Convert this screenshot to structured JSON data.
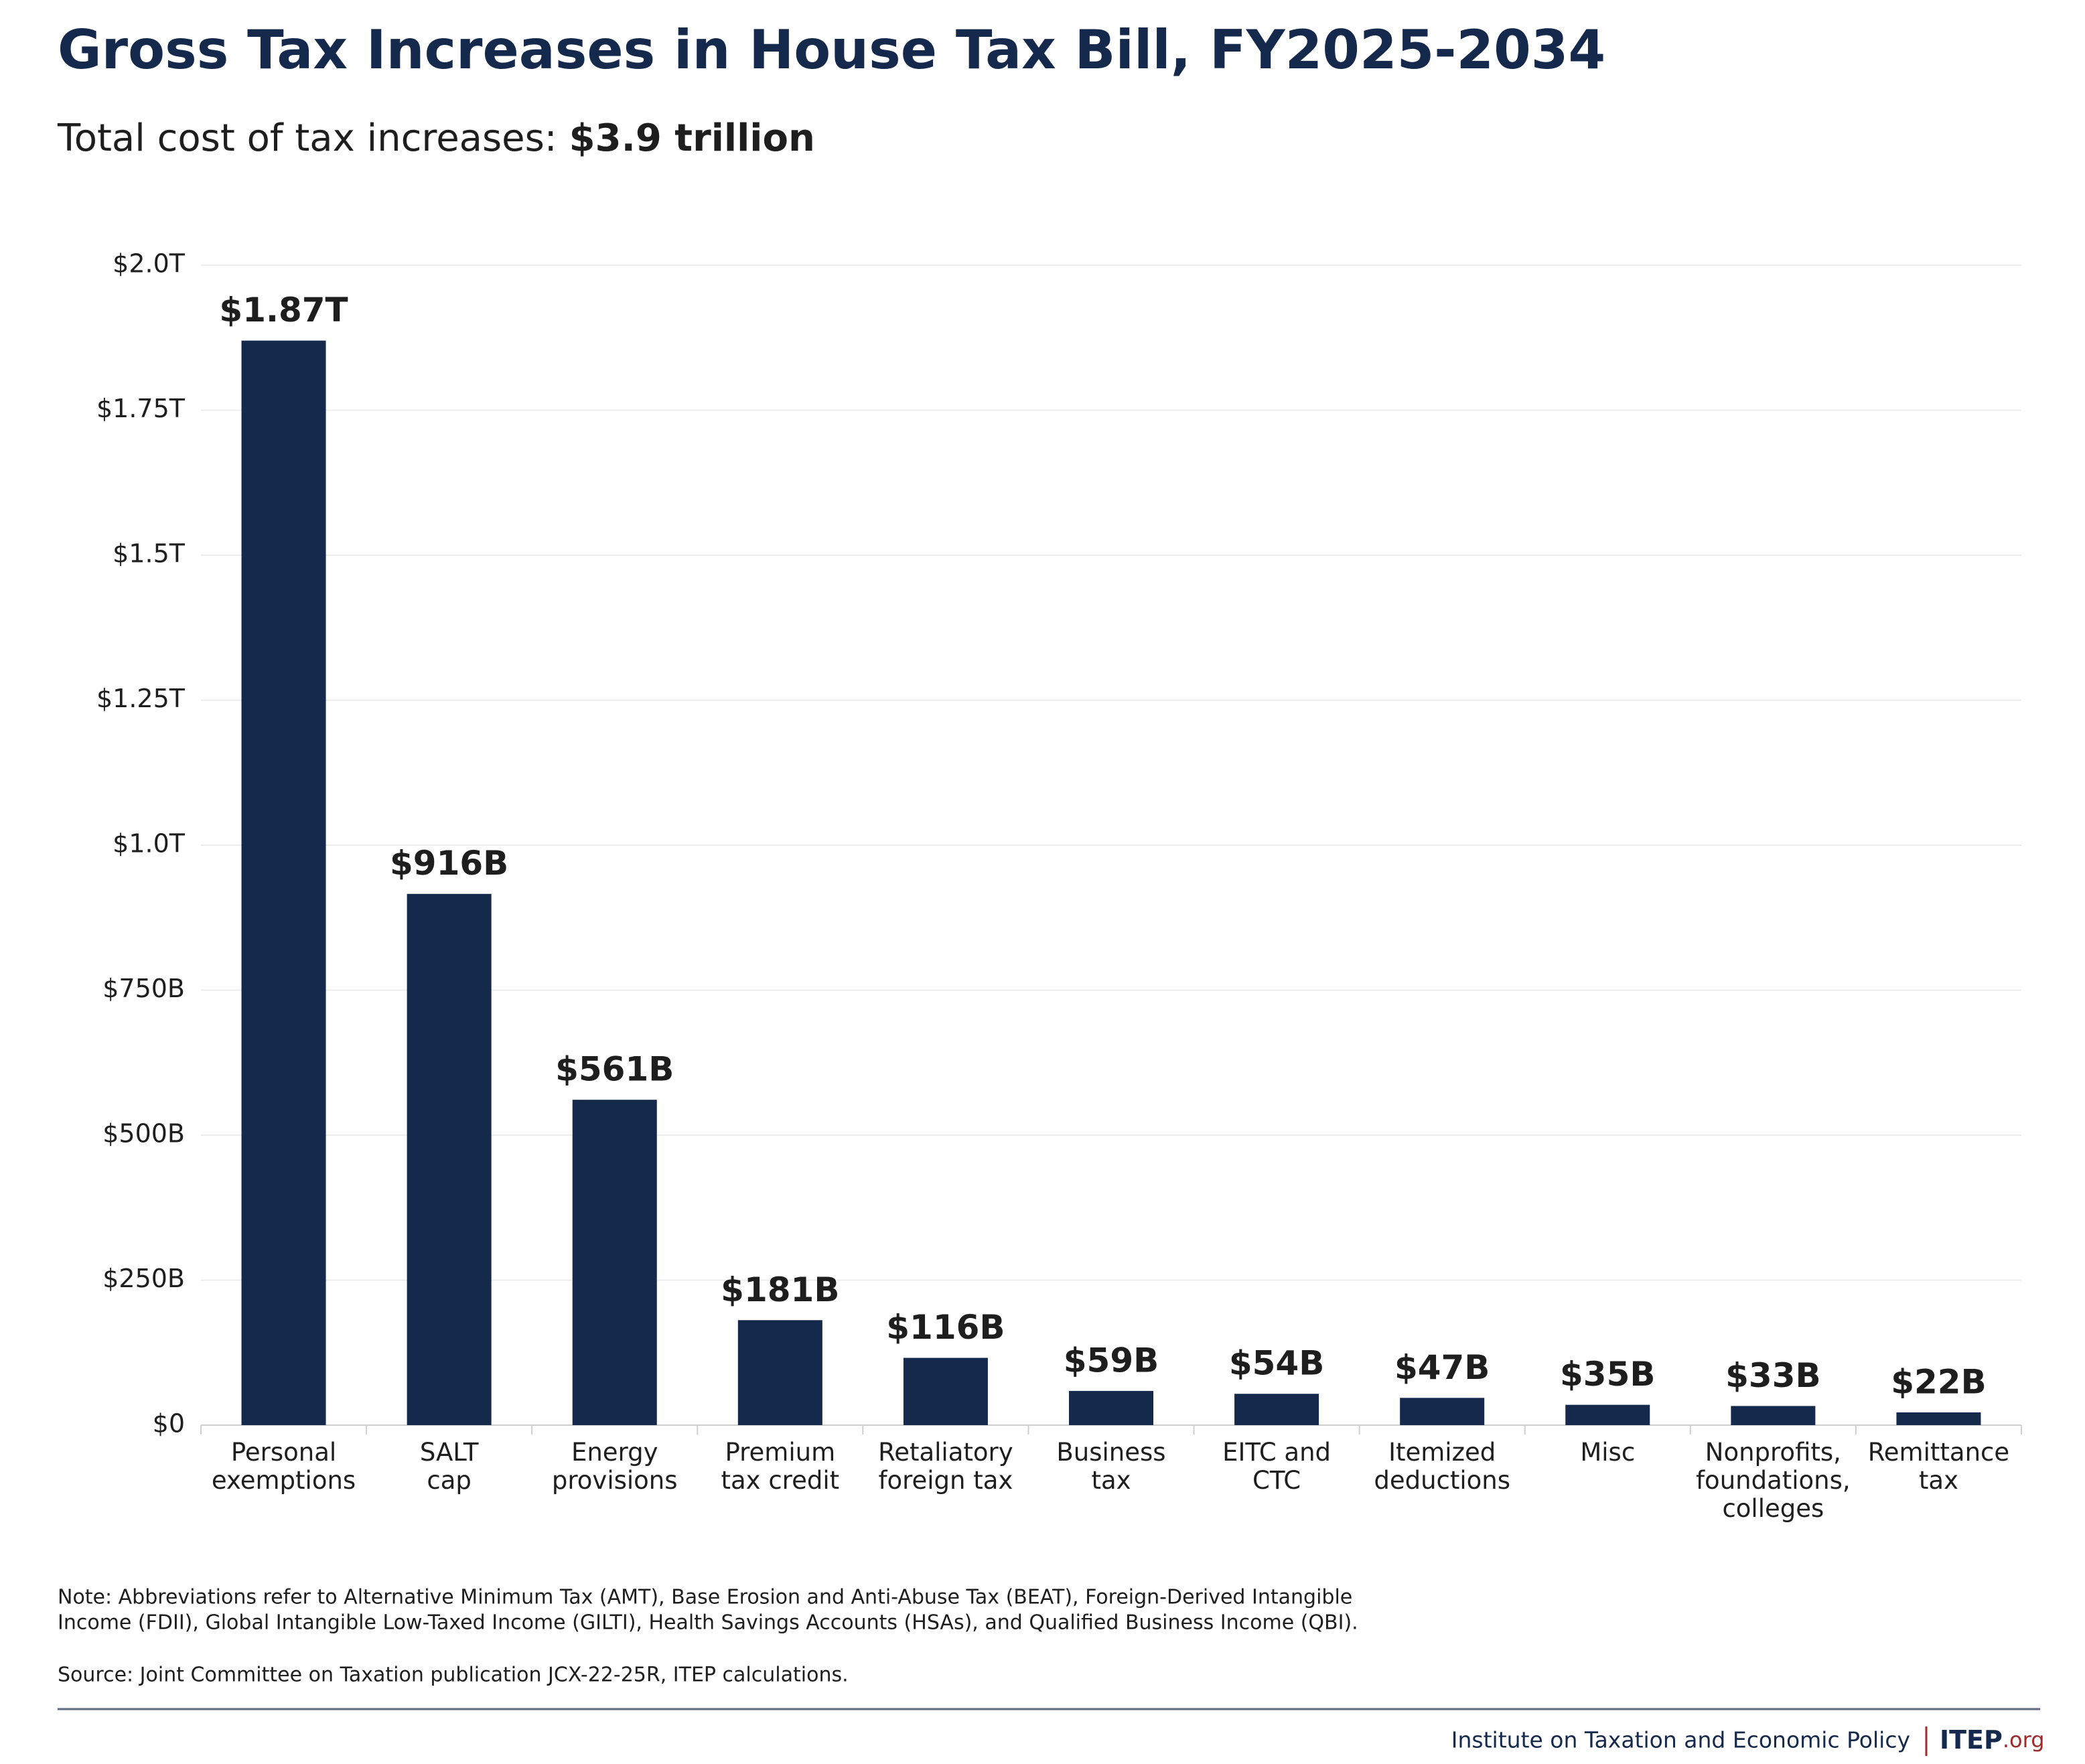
{
  "chart_data": {
    "type": "bar",
    "title": "Gross Tax Increases in House Tax Bill, FY2025-2034",
    "subtitle": {
      "text": "Total cost of tax increases:",
      "emphasis": "$3.9 trillion"
    },
    "categories": [
      [
        "Personal",
        "exemptions"
      ],
      [
        "SALT",
        "cap"
      ],
      [
        "Energy",
        "provisions"
      ],
      [
        "Premium",
        "tax credit"
      ],
      [
        "Retaliatory",
        "foreign tax"
      ],
      [
        "Business",
        "tax"
      ],
      [
        "EITC and",
        "CTC"
      ],
      [
        "Itemized",
        "deductions"
      ],
      [
        "Misc"
      ],
      [
        "Nonprofits,",
        "foundations,",
        "colleges"
      ],
      [
        "Remittance",
        "tax"
      ]
    ],
    "values": [
      1870,
      916,
      561,
      181,
      116,
      59,
      54,
      47,
      35,
      33,
      22
    ],
    "value_labels": [
      "$1.87T",
      "$916B",
      "$561B",
      "$181B",
      "$116B",
      "$59B",
      "$54B",
      "$47B",
      "$35B",
      "$33B",
      "$22B"
    ],
    "color": "#15294c",
    "ylim": [
      0,
      2000
    ],
    "yticks": [
      {
        "value": 0,
        "label": "$0"
      },
      {
        "value": 250,
        "label": "$250B"
      },
      {
        "value": 500,
        "label": "$500B"
      },
      {
        "value": 750,
        "label": "$750B"
      },
      {
        "value": 1000,
        "label": "$1.0T"
      },
      {
        "value": 1250,
        "label": "$1.25T"
      },
      {
        "value": 1500,
        "label": "$1.5T"
      },
      {
        "value": 1750,
        "label": "$1.75T"
      },
      {
        "value": 2000,
        "label": "$2.0T"
      }
    ],
    "grid": true,
    "note": [
      "Note: Abbreviations refer to Alternative Minimum Tax (AMT), Base Erosion and Anti-Abuse Tax (BEAT), Foreign-Derived Intangible",
      "Income (FDII), Global Intangible Low-Taxed Income (GILTI), Health Savings Accounts (HSAs), and Qualified Business Income (QBI)."
    ],
    "source": "Source: Joint Committee on Taxation publication JCX-22-25R, ITEP calculations.",
    "footer": {
      "organization": "Institute on Taxation and Economic Policy",
      "logo": "ITEP",
      "logo_suffix": ".org"
    }
  }
}
